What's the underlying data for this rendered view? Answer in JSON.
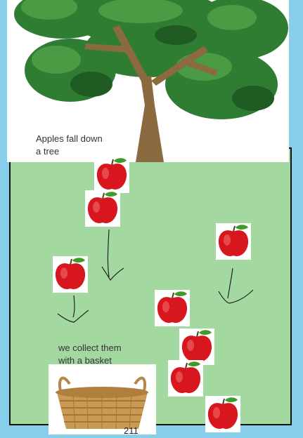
{
  "scene": {
    "tree_caption": "Apples fall down\na tree",
    "basket_caption": "we collect them\nwith a basket",
    "footer_label": "211"
  },
  "colors": {
    "sky": "#87ceeb",
    "ground": "#a3d8a0",
    "apple": "#d8161e",
    "leaf": "#3f9a2c",
    "foliage": "#2f7d32",
    "trunk": "#8a6a3e",
    "basket": "#c99a52"
  },
  "icons": [
    "tree-icon",
    "apple-icon",
    "arrow-down-icon",
    "basket-icon"
  ]
}
